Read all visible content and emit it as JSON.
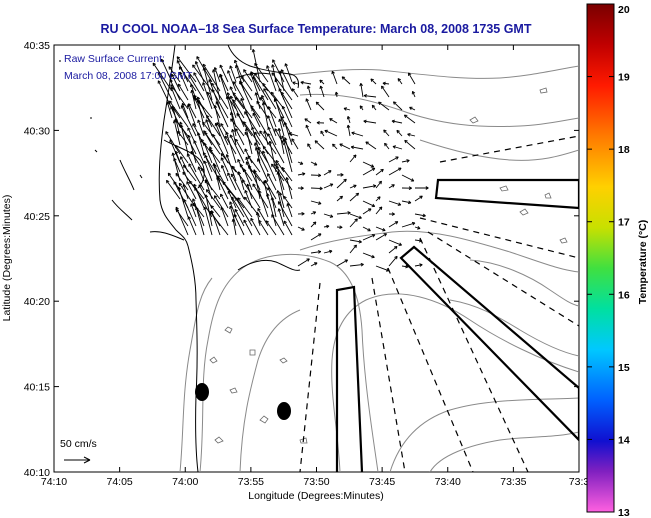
{
  "title": "RU COOL  NOAA–18  Sea Surface Temperature:  March 08, 2008 1735 GMT",
  "annotation": {
    "line1": "Raw Surface Current:",
    "line2": "March 08, 2008 17:00 GMT"
  },
  "scale_label": "50 cm/s",
  "axes": {
    "xlabel": "Longitude (Degrees:Minutes)",
    "ylabel": "Latitude (Degrees:Minutes)",
    "xticks": [
      "74:10",
      "74:05",
      "74:00",
      "73:55",
      "73:50",
      "73:45",
      "73:40",
      "73:35",
      "73:3"
    ],
    "yticks": [
      "40:35",
      "40:30",
      "40:25",
      "40:20",
      "40:15",
      "40:10"
    ]
  },
  "colorbar": {
    "label": "Temperature (°C)",
    "ticks": [
      "20",
      "19",
      "18",
      "17",
      "16",
      "15",
      "14",
      "13"
    ]
  },
  "colors": {
    "title": "#1a1aa0",
    "land_outline": "#000000",
    "contour": "#8a8a8a"
  }
}
